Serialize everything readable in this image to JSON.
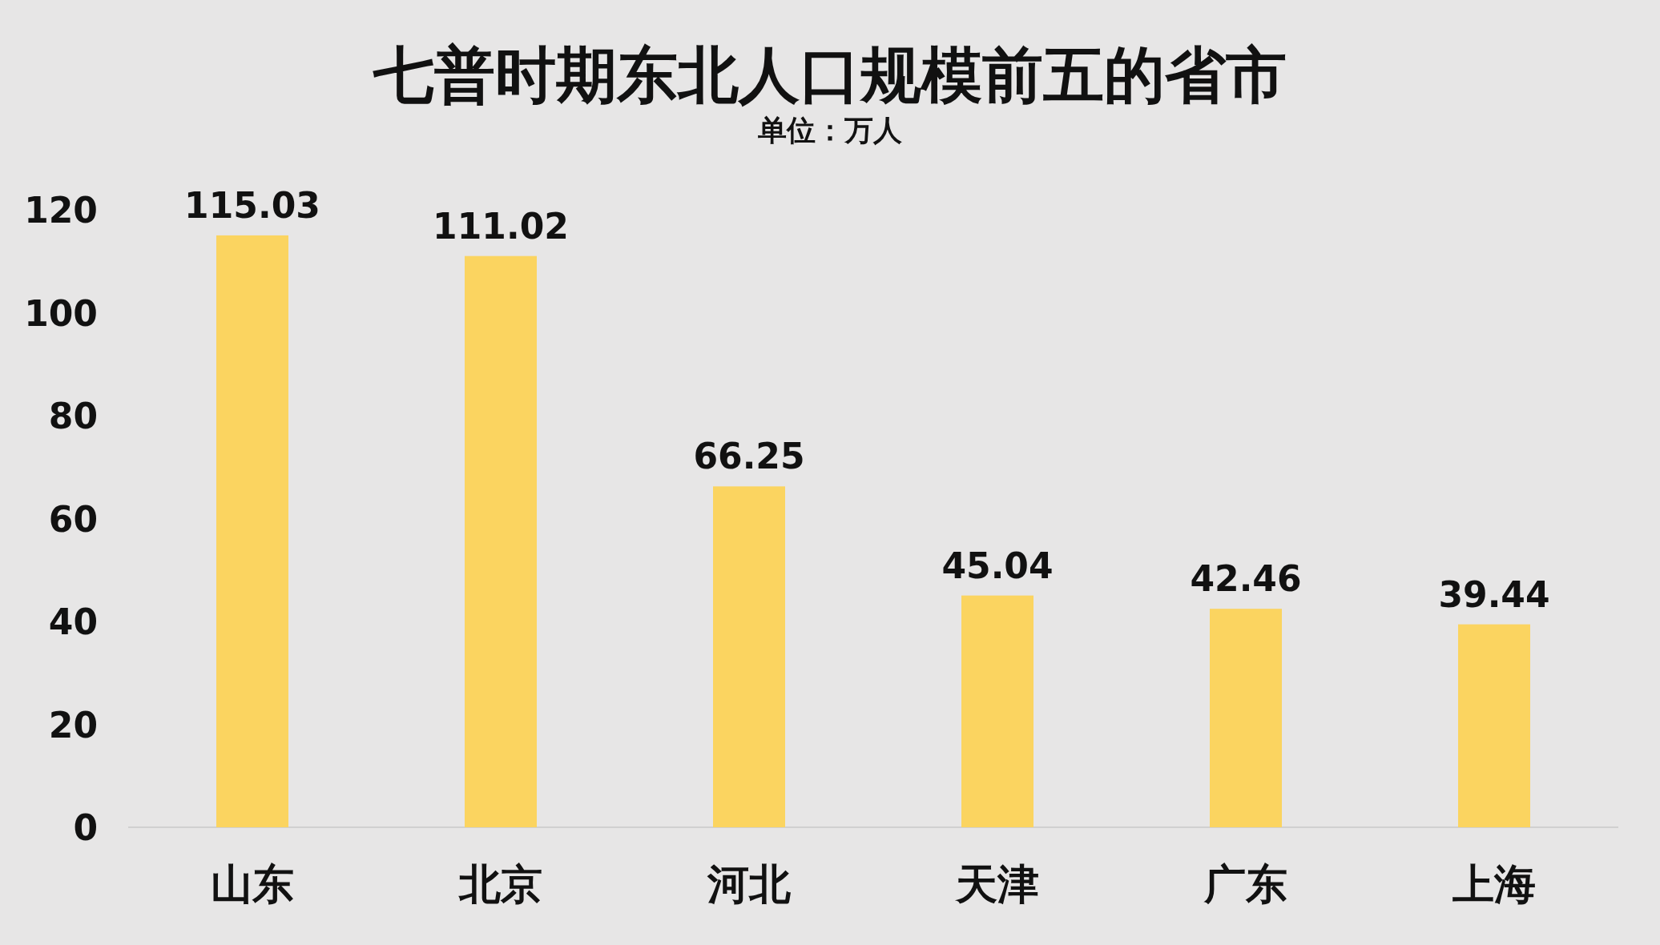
{
  "chart_data": {
    "type": "bar",
    "title": "七普时期东北人口规模前五的省市",
    "subtitle": "单位：万人",
    "categories": [
      "山东",
      "北京",
      "河北",
      "天津",
      "广东",
      "上海"
    ],
    "values": [
      115.03,
      111.02,
      66.25,
      45.04,
      42.46,
      39.44
    ],
    "color": "#fbd460",
    "ylim": [
      0,
      120
    ],
    "yticks": [
      0,
      20,
      40,
      60,
      80,
      100,
      120
    ],
    "data_labels": true,
    "grid": false
  }
}
